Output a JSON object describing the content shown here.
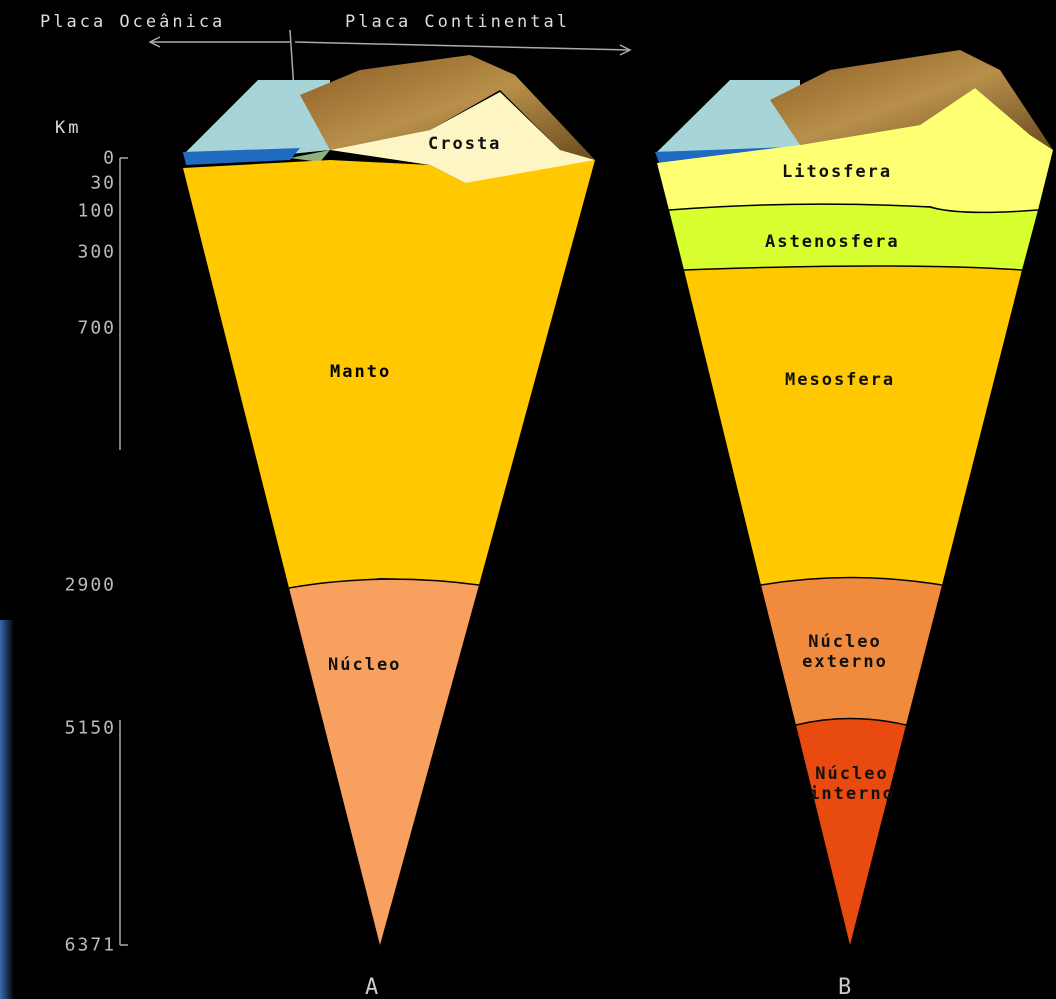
{
  "header": {
    "oceanic_plate": "Placa Oceânica",
    "continental_plate": "Placa Continental"
  },
  "depth_axis": {
    "unit": "Km",
    "labels": [
      "0",
      "30",
      "100",
      "300",
      "700",
      "2900",
      "5150",
      "6371"
    ]
  },
  "diagram_a": {
    "label": "A",
    "layers": [
      "Crosta",
      "Manto",
      "Núcleo"
    ]
  },
  "diagram_b": {
    "label": "B",
    "layers": [
      "Litosfera",
      "Astenosfera",
      "Mesosfera",
      "Núcleo externo",
      "Núcleo interno"
    ]
  }
}
